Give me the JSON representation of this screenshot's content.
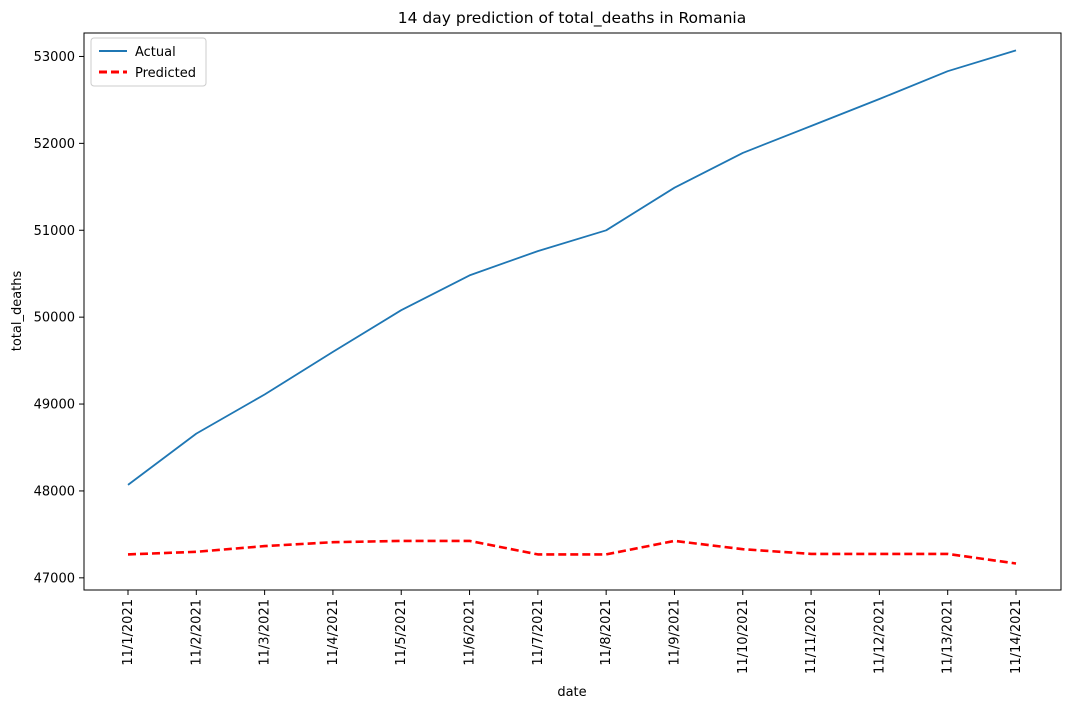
{
  "chart_data": {
    "type": "line",
    "title": "14 day prediction of total_deaths in Romania",
    "xlabel": "date",
    "ylabel": "total_deaths",
    "categories": [
      "11/1/2021",
      "11/2/2021",
      "11/3/2021",
      "11/4/2021",
      "11/5/2021",
      "11/6/2021",
      "11/7/2021",
      "11/8/2021",
      "11/9/2021",
      "11/10/2021",
      "11/11/2021",
      "11/12/2021",
      "11/13/2021",
      "11/14/2021"
    ],
    "yticks": [
      47000,
      48000,
      49000,
      50000,
      51000,
      52000,
      53000
    ],
    "ylim": [
      46860,
      53270
    ],
    "grid": false,
    "legend_position": "top-left",
    "series": [
      {
        "name": "Actual",
        "color": "#1f77b4",
        "style": "solid",
        "values": [
          48070,
          48660,
          49110,
          49600,
          50080,
          50480,
          50760,
          51000,
          51490,
          51890,
          52200,
          52510,
          52830,
          53070
        ]
      },
      {
        "name": "Predicted",
        "color": "#ff0000",
        "style": "dashed",
        "values": [
          47270,
          47300,
          47365,
          47410,
          47425,
          47425,
          47270,
          47270,
          47425,
          47330,
          47275,
          47275,
          47275,
          47165
        ]
      }
    ]
  }
}
